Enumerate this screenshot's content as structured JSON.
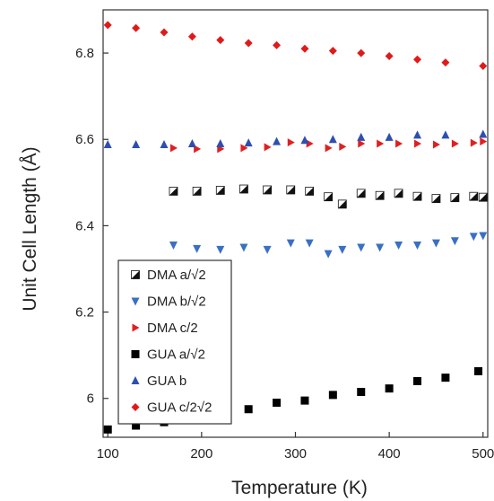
{
  "chart_data": {
    "type": "scatter",
    "xlabel": "Temperature (K)",
    "ylabel": "Unit Cell Length (Å)",
    "xlim": [
      95,
      505
    ],
    "ylim": [
      5.91,
      6.9
    ],
    "xticks": [
      100,
      200,
      300,
      400,
      500
    ],
    "yticks": [
      6.0,
      6.2,
      6.4,
      6.6,
      6.8
    ],
    "xtick_labels": [
      "100",
      "200",
      "300",
      "400",
      "500"
    ],
    "ytick_labels": [
      "6",
      "6.2",
      "6.4",
      "6.6",
      "6.8"
    ],
    "grid": false,
    "legend_position": "bottom-left",
    "series": [
      {
        "name": "DMA a/√2",
        "marker": "half-filled-square",
        "color": "#111111",
        "x": [
          170,
          195,
          220,
          245,
          270,
          295,
          315,
          335,
          350,
          370,
          390,
          410,
          430,
          450,
          470,
          490,
          500
        ],
        "y": [
          6.48,
          6.48,
          6.482,
          6.485,
          6.483,
          6.483,
          6.48,
          6.467,
          6.45,
          6.475,
          6.47,
          6.475,
          6.468,
          6.463,
          6.465,
          6.468,
          6.466
        ]
      },
      {
        "name": "DMA b/√2",
        "marker": "triangle-down",
        "color": "#3a6fc4",
        "x": [
          170,
          195,
          220,
          245,
          270,
          295,
          315,
          335,
          350,
          370,
          390,
          410,
          430,
          450,
          470,
          490,
          500
        ],
        "y": [
          6.355,
          6.347,
          6.345,
          6.35,
          6.345,
          6.36,
          6.36,
          6.335,
          6.345,
          6.35,
          6.35,
          6.355,
          6.355,
          6.36,
          6.365,
          6.375,
          6.377
        ]
      },
      {
        "name": "DMA c/2",
        "marker": "triangle-right",
        "color": "#e02020",
        "x": [
          170,
          195,
          220,
          245,
          270,
          295,
          315,
          335,
          350,
          370,
          390,
          410,
          430,
          450,
          470,
          490,
          500
        ],
        "y": [
          6.58,
          6.578,
          6.578,
          6.58,
          6.582,
          6.593,
          6.59,
          6.58,
          6.583,
          6.59,
          6.59,
          6.59,
          6.59,
          6.588,
          6.59,
          6.592,
          6.595
        ]
      },
      {
        "name": "GUA a/√2",
        "marker": "square",
        "color": "#000000",
        "x": [
          100,
          130,
          160,
          190,
          220,
          250,
          280,
          310,
          340,
          370,
          400,
          430,
          460,
          495
        ],
        "y": [
          5.928,
          5.937,
          5.945,
          5.953,
          5.965,
          5.975,
          5.99,
          5.995,
          6.008,
          6.015,
          6.023,
          6.04,
          6.048,
          6.063
        ]
      },
      {
        "name": "GUA b",
        "marker": "triangle-up",
        "color": "#2e4fb0",
        "x": [
          100,
          130,
          160,
          190,
          220,
          250,
          280,
          310,
          340,
          370,
          400,
          430,
          460,
          500
        ],
        "y": [
          6.588,
          6.588,
          6.588,
          6.59,
          6.59,
          6.592,
          6.595,
          6.598,
          6.6,
          6.605,
          6.605,
          6.61,
          6.61,
          6.612
        ]
      },
      {
        "name": "GUA c/2√2",
        "marker": "diamond",
        "color": "#e01a1a",
        "x": [
          100,
          130,
          160,
          190,
          220,
          250,
          280,
          310,
          340,
          370,
          400,
          430,
          460,
          500
        ],
        "y": [
          6.865,
          6.858,
          6.848,
          6.838,
          6.83,
          6.823,
          6.818,
          6.81,
          6.805,
          6.8,
          6.793,
          6.785,
          6.778,
          6.77
        ]
      }
    ]
  }
}
